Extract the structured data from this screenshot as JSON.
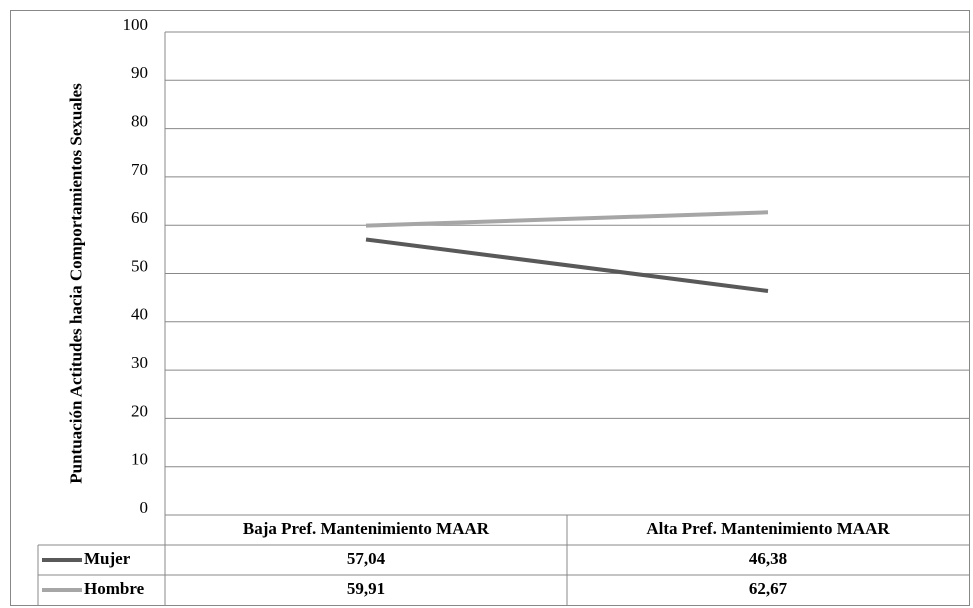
{
  "chart_data": {
    "type": "line",
    "ylabel": "Puntuación Actitudes hacia Comportamientos Sexuales",
    "categories": [
      "Baja Pref. Mantenimiento MAAR",
      "Alta Pref. Mantenimiento MAAR"
    ],
    "series": [
      {
        "name": "Mujer",
        "color": "#595959",
        "values": [
          57.04,
          46.38
        ],
        "value_labels": [
          "57,04",
          "46,38"
        ]
      },
      {
        "name": "Hombre",
        "color": "#a6a6a6",
        "values": [
          59.91,
          62.67
        ],
        "value_labels": [
          "59,91",
          "62,67"
        ]
      }
    ],
    "ylim": [
      0,
      100
    ],
    "yticks": [
      0,
      10,
      20,
      30,
      40,
      50,
      60,
      70,
      80,
      90,
      100
    ],
    "grid": true
  }
}
